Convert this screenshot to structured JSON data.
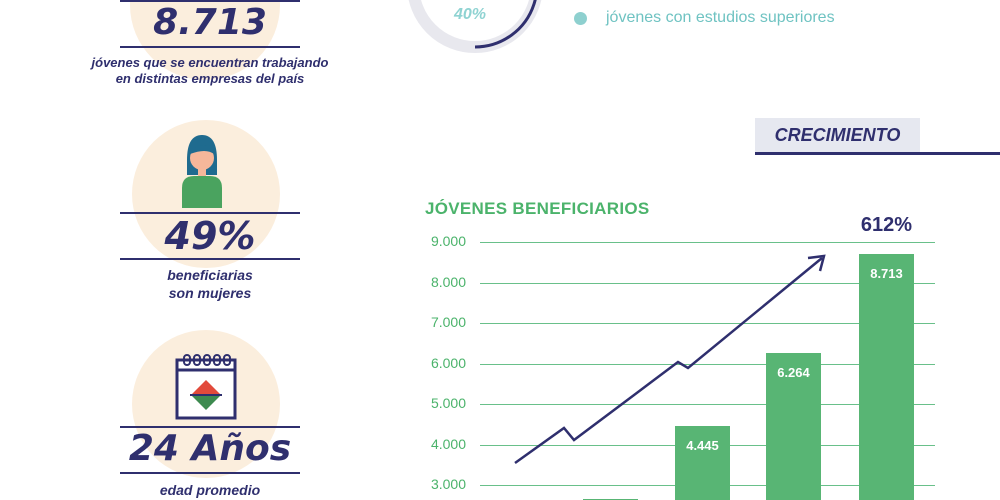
{
  "stats": [
    {
      "value": "8.713",
      "caption_line1": "jóvenes que se encuentran trabajando",
      "caption_line2": "en distintas empresas del país"
    },
    {
      "value": "49%",
      "caption_line1": "beneficiarias",
      "caption_line2": "son mujeres"
    },
    {
      "value": "24 Años",
      "caption_line1": "edad promedio",
      "caption_line2": ""
    }
  ],
  "donut": {
    "label": "40%",
    "percent": 40
  },
  "legend": {
    "item": "jóvenes con estudios superiores"
  },
  "section_tab": "CRECIMIENTO",
  "chart_data": {
    "type": "bar",
    "title": "JÓVENES BENEFICIARIOS",
    "yticks": [
      "9.000",
      "8.000",
      "7.000",
      "6.000",
      "5.000",
      "4.000",
      "3.000"
    ],
    "ylim": [
      2500,
      9000
    ],
    "values": [
      2650,
      4445,
      6264,
      8713
    ],
    "value_labels": [
      "",
      "4.445",
      "6.264",
      "8.713"
    ],
    "growth_label": "612%",
    "colors": {
      "bar": "#58b574",
      "trend": "#2f2f6e"
    }
  }
}
